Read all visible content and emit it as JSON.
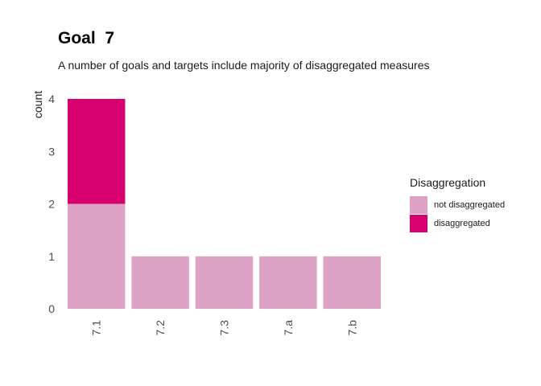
{
  "chart_data": {
    "type": "bar",
    "stacked": true,
    "title": "Goal  7",
    "subtitle": "A number of goals and targets include majority of disaggregated measures",
    "xlabel": "",
    "ylabel": "count",
    "categories": [
      "7.1",
      "7.2",
      "7.3",
      "7.a",
      "7.b"
    ],
    "series": [
      {
        "name": "not disaggregated",
        "values": [
          2,
          1,
          1,
          1,
          1
        ],
        "color": "#df a3c5"
      },
      {
        "name": "disaggregated",
        "values": [
          2,
          0,
          0,
          0,
          0
        ],
        "color": "#d6006f"
      }
    ],
    "ylim": [
      0,
      4
    ],
    "yticks": [
      "0",
      "1",
      "2",
      "3",
      "4"
    ],
    "grid": false,
    "legend": {
      "title": "Disaggregation",
      "position": "right"
    }
  }
}
